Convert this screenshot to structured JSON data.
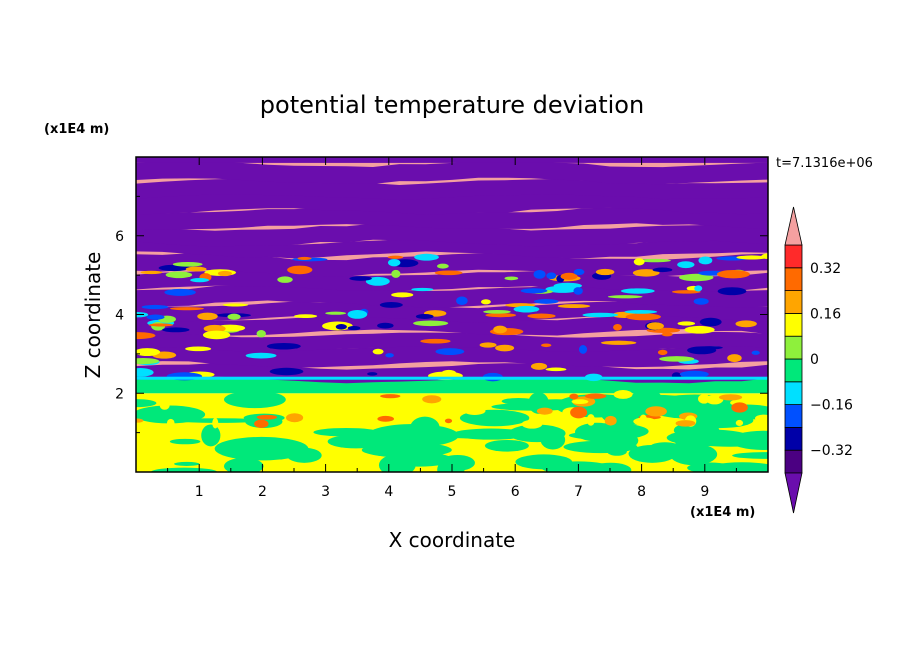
{
  "chart_data": {
    "type": "heatmap",
    "title": "potential temperature deviation",
    "xlabel": "X coordinate",
    "ylabel": "Z coordinate",
    "x_unit": "(x1E4 m)",
    "y_unit": "(x1E4 m)",
    "time_label": "t=7.1316e+06",
    "xlim": [
      0,
      10
    ],
    "ylim": [
      0,
      8
    ],
    "x_ticks": [
      "1",
      "2",
      "3",
      "4",
      "5",
      "6",
      "7",
      "8",
      "9"
    ],
    "y_ticks": [
      "2",
      "4",
      "6"
    ],
    "colorbar": {
      "levels": [
        -0.48,
        -0.4,
        -0.32,
        -0.24,
        -0.16,
        -0.08,
        0,
        0.08,
        0.16,
        0.24,
        0.32,
        0.4,
        0.48
      ],
      "tick_labels": [
        "0.32",
        "0.16",
        "0",
        "−0.16",
        "−0.32"
      ],
      "tick_values": [
        0.32,
        0.16,
        0,
        -0.16,
        -0.32
      ],
      "colors": [
        "#6a0dad",
        "#4b0082",
        "#0000a8",
        "#0050ff",
        "#00e0ff",
        "#00e87a",
        "#8ef03c",
        "#ffff00",
        "#ffa500",
        "#ff6a00",
        "#ff2a2a",
        "#f4a0a0"
      ],
      "extend": "both"
    },
    "layers": {
      "lower_mixed_layer": {
        "z_range": [
          0,
          2.0
        ],
        "typical_values": [
          0,
          0.08
        ]
      },
      "transition_band": {
        "z_range": [
          2.0,
          2.4
        ],
        "typical_values": [
          -0.08,
          0.08
        ]
      },
      "banded_upper_layer": {
        "z_range": [
          2.4,
          8.0
        ],
        "alternating_values": [
          -0.48,
          0.48
        ]
      }
    }
  }
}
